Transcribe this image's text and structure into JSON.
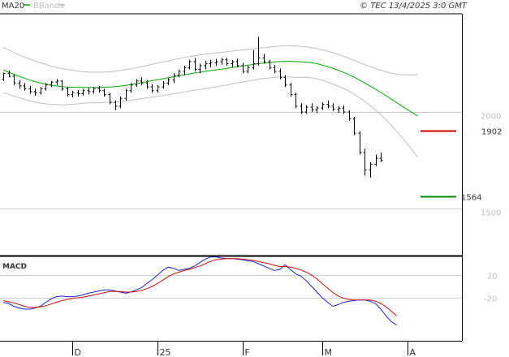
{
  "legend": {
    "ma_label": "MA20",
    "bb_label": "BBands",
    "ma_color": "#00aa00",
    "bb_color": "#c0c0c0"
  },
  "copyright": "© TEC 13/4/2025 3:0 GMT",
  "indicator_label": "MACD",
  "chart_data": [
    {
      "type": "ohlc",
      "y_axis_ticks": [
        {
          "value": 2000,
          "label": "2000"
        },
        {
          "value": 1500,
          "label": "1500"
        }
      ],
      "x_axis_labels": [
        {
          "index": 13,
          "label": "D"
        },
        {
          "index": 29,
          "label": "25"
        },
        {
          "index": 45,
          "label": "F"
        },
        {
          "index": 60,
          "label": "M"
        },
        {
          "index": 76,
          "label": "A"
        }
      ],
      "series": [
        {
          "name": "MA20",
          "values": [
            2217,
            2206,
            2195,
            2185,
            2175,
            2165,
            2157,
            2150,
            2144,
            2139,
            2135,
            2131,
            2129,
            2128,
            2127,
            2127,
            2127,
            2127,
            2127,
            2128,
            2129,
            2131,
            2134,
            2138,
            2142,
            2147,
            2152,
            2157,
            2162,
            2167,
            2172,
            2177,
            2182,
            2187,
            2192,
            2197,
            2202,
            2206,
            2210,
            2214,
            2218,
            2222,
            2226,
            2230,
            2234,
            2238,
            2242,
            2246,
            2250,
            2253,
            2256,
            2259,
            2261,
            2262,
            2262,
            2261,
            2260,
            2258,
            2255,
            2250,
            2243,
            2235,
            2226,
            2216,
            2205,
            2193,
            2180,
            2165,
            2150,
            2134,
            2118,
            2101,
            2084,
            2066,
            2048,
            2030,
            2013,
            1996,
            1979
          ]
        },
        {
          "name": "BBands upper",
          "values": [
            2334,
            2321,
            2308,
            2296,
            2284,
            2273,
            2263,
            2254,
            2246,
            2238,
            2231,
            2225,
            2220,
            2216,
            2212,
            2209,
            2207,
            2206,
            2206,
            2207,
            2208,
            2211,
            2214,
            2219,
            2224,
            2229,
            2235,
            2241,
            2247,
            2253,
            2259,
            2264,
            2270,
            2276,
            2281,
            2286,
            2291,
            2295,
            2299,
            2303,
            2306,
            2309,
            2312,
            2315,
            2318,
            2321,
            2324,
            2327,
            2330,
            2333,
            2336,
            2339,
            2341,
            2342,
            2343,
            2342,
            2340,
            2337,
            2333,
            2328,
            2322,
            2315,
            2307,
            2298,
            2288,
            2278,
            2267,
            2256,
            2245,
            2235,
            2225,
            2216,
            2208,
            2201,
            2196,
            2193,
            2192,
            2192,
            2193
          ]
        },
        {
          "name": "BBands lower",
          "values": [
            2100,
            2091,
            2082,
            2074,
            2066,
            2057,
            2051,
            2046,
            2042,
            2040,
            2039,
            2037,
            2038,
            2040,
            2042,
            2045,
            2047,
            2048,
            2048,
            2049,
            2050,
            2051,
            2054,
            2057,
            2060,
            2065,
            2069,
            2073,
            2077,
            2081,
            2085,
            2090,
            2094,
            2098,
            2103,
            2108,
            2113,
            2117,
            2121,
            2125,
            2130,
            2135,
            2140,
            2145,
            2150,
            2155,
            2160,
            2165,
            2170,
            2173,
            2176,
            2179,
            2181,
            2182,
            2181,
            2180,
            2180,
            2179,
            2177,
            2172,
            2164,
            2155,
            2145,
            2134,
            2122,
            2108,
            2093,
            2074,
            2055,
            2033,
            2011,
            1986,
            1960,
            1931,
            1900,
            1867,
            1834,
            1800,
            1765
          ]
        }
      ],
      "ohlc": [
        [
          2170,
          2205,
          2160,
          2200
        ],
        [
          2200,
          2215,
          2180,
          2185
        ],
        [
          2185,
          2195,
          2140,
          2150
        ],
        [
          2150,
          2165,
          2120,
          2135
        ],
        [
          2135,
          2150,
          2110,
          2120
        ],
        [
          2120,
          2135,
          2095,
          2105
        ],
        [
          2105,
          2120,
          2085,
          2100
        ],
        [
          2100,
          2130,
          2090,
          2120
        ],
        [
          2120,
          2150,
          2110,
          2140
        ],
        [
          2140,
          2160,
          2130,
          2155
        ],
        [
          2155,
          2170,
          2140,
          2160
        ],
        [
          2160,
          2165,
          2110,
          2120
        ],
        [
          2120,
          2130,
          2080,
          2090
        ],
        [
          2090,
          2110,
          2075,
          2100
        ],
        [
          2100,
          2115,
          2080,
          2095
        ],
        [
          2095,
          2120,
          2085,
          2110
        ],
        [
          2110,
          2125,
          2090,
          2105
        ],
        [
          2105,
          2130,
          2095,
          2120
        ],
        [
          2120,
          2135,
          2100,
          2110
        ],
        [
          2110,
          2120,
          2080,
          2090
        ],
        [
          2090,
          2100,
          2040,
          2050
        ],
        [
          2050,
          2060,
          2010,
          2030
        ],
        [
          2030,
          2080,
          2020,
          2070
        ],
        [
          2070,
          2120,
          2060,
          2110
        ],
        [
          2110,
          2150,
          2100,
          2140
        ],
        [
          2140,
          2170,
          2130,
          2160
        ],
        [
          2160,
          2180,
          2140,
          2150
        ],
        [
          2150,
          2165,
          2120,
          2130
        ],
        [
          2130,
          2145,
          2100,
          2110
        ],
        [
          2110,
          2140,
          2100,
          2130
        ],
        [
          2130,
          2160,
          2120,
          2150
        ],
        [
          2150,
          2175,
          2140,
          2165
        ],
        [
          2165,
          2200,
          2150,
          2190
        ],
        [
          2190,
          2220,
          2180,
          2210
        ],
        [
          2210,
          2240,
          2190,
          2230
        ],
        [
          2230,
          2270,
          2220,
          2260
        ],
        [
          2260,
          2280,
          2210,
          2220
        ],
        [
          2220,
          2250,
          2200,
          2240
        ],
        [
          2240,
          2265,
          2220,
          2250
        ],
        [
          2250,
          2270,
          2230,
          2255
        ],
        [
          2255,
          2275,
          2240,
          2260
        ],
        [
          2260,
          2280,
          2245,
          2270
        ],
        [
          2270,
          2280,
          2240,
          2250
        ],
        [
          2250,
          2270,
          2230,
          2260
        ],
        [
          2260,
          2275,
          2230,
          2240
        ],
        [
          2240,
          2255,
          2200,
          2210
        ],
        [
          2210,
          2240,
          2200,
          2230
        ],
        [
          2230,
          2320,
          2220,
          2250
        ],
        [
          2250,
          2390,
          2240,
          2280
        ],
        [
          2280,
          2300,
          2250,
          2260
        ],
        [
          2260,
          2270,
          2220,
          2230
        ],
        [
          2230,
          2245,
          2200,
          2210
        ],
        [
          2210,
          2225,
          2170,
          2180
        ],
        [
          2180,
          2190,
          2130,
          2140
        ],
        [
          2140,
          2150,
          2080,
          2090
        ],
        [
          2090,
          2100,
          2020,
          2030
        ],
        [
          2030,
          2045,
          1990,
          2000
        ],
        [
          2000,
          2035,
          1990,
          2025
        ],
        [
          2025,
          2045,
          2000,
          2010
        ],
        [
          2010,
          2030,
          1995,
          2020
        ],
        [
          2020,
          2050,
          2010,
          2040
        ],
        [
          2040,
          2060,
          2020,
          2030
        ],
        [
          2030,
          2045,
          2005,
          2015
        ],
        [
          2015,
          2030,
          1995,
          2020
        ],
        [
          2020,
          2035,
          1990,
          2000
        ],
        [
          2000,
          2010,
          1955,
          1965
        ],
        [
          1965,
          1975,
          1880,
          1890
        ],
        [
          1890,
          1900,
          1780,
          1790
        ],
        [
          1790,
          1810,
          1670,
          1700
        ],
        [
          1700,
          1740,
          1660,
          1730
        ],
        [
          1730,
          1780,
          1720,
          1760
        ],
        [
          1760,
          1790,
          1740,
          1750
        ]
      ],
      "price_markers": [
        {
          "value": 1902,
          "label": "1902",
          "color": "#cc0000"
        },
        {
          "value": 1564,
          "label": "1564",
          "color": "#008800"
        }
      ]
    },
    {
      "type": "line",
      "name": "MACD",
      "y_axis_ticks": [
        {
          "value": 20,
          "label": "20"
        },
        {
          "value": -20,
          "label": "-20"
        }
      ],
      "series": [
        {
          "name": "MACD",
          "color": "#2020cc",
          "values": [
            -28,
            -30,
            -35,
            -38,
            -40,
            -40,
            -38,
            -35,
            -28,
            -22,
            -18,
            -17,
            -18,
            -18,
            -17,
            -15,
            -12,
            -10,
            -8,
            -6,
            -6,
            -8,
            -10,
            -12,
            -10,
            -6,
            -2,
            5,
            12,
            20,
            28,
            34,
            32,
            28,
            30,
            32,
            36,
            42,
            48,
            52,
            52,
            50,
            49,
            49,
            48,
            47,
            45,
            44,
            40,
            36,
            32,
            28,
            30,
            38,
            30,
            22,
            18,
            10,
            0,
            -10,
            -20,
            -28,
            -35,
            -32,
            -28,
            -26,
            -25,
            -24,
            -24,
            -26,
            -30,
            -40,
            -52,
            -62,
            -68
          ]
        },
        {
          "name": "Signal",
          "color": "#cc1010",
          "values": [
            -25,
            -27,
            -29,
            -32,
            -35,
            -37,
            -37,
            -36,
            -34,
            -31,
            -28,
            -25,
            -23,
            -21,
            -20,
            -19,
            -17,
            -15,
            -13,
            -11,
            -9,
            -9,
            -9,
            -10,
            -10,
            -9,
            -7,
            -4,
            0,
            5,
            11,
            17,
            22,
            25,
            28,
            30,
            33,
            36,
            40,
            44,
            47,
            48,
            49,
            49,
            49,
            48,
            47,
            46,
            44,
            42,
            40,
            37,
            35,
            35,
            34,
            32,
            29,
            25,
            20,
            13,
            5,
            -3,
            -11,
            -17,
            -21,
            -23,
            -24,
            -24,
            -24,
            -24,
            -26,
            -30,
            -36,
            -44,
            -52
          ]
        }
      ]
    }
  ]
}
